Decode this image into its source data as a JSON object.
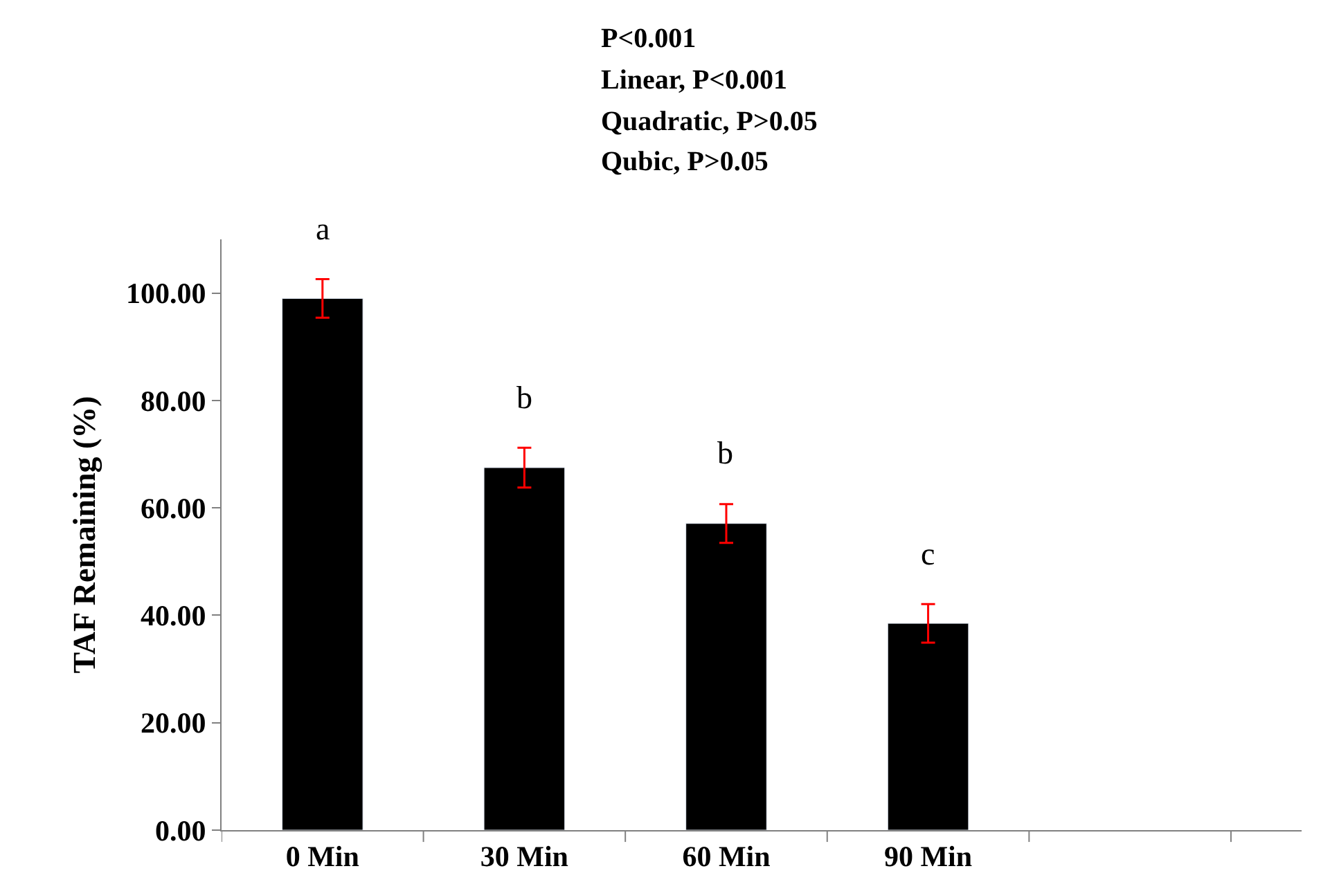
{
  "chart_data": {
    "type": "bar",
    "ylabel": "TAF Remaining (%)",
    "categories": [
      "0 Min",
      "30 Min",
      "60 Min",
      "90 Min",
      null
    ],
    "values": [
      99.0,
      67.5,
      57.1,
      38.5,
      null
    ],
    "errors": [
      3.6,
      3.7,
      3.6,
      3.6,
      null
    ],
    "color": "#000000",
    "ylim": [
      0,
      110
    ],
    "yticks": [
      {
        "value": 0,
        "label": "0.00"
      },
      {
        "value": 20,
        "label": "20.00"
      },
      {
        "value": 40,
        "label": "40.00"
      },
      {
        "value": 60,
        "label": "60.00"
      },
      {
        "value": 80,
        "label": "80.00"
      },
      {
        "value": 100,
        "label": "100.00"
      }
    ],
    "legend": false,
    "annotations": [
      "P<0.001",
      "Linear, P<0.001",
      "Quadratic, P>0.05",
      "Qubic, P>0.05",
      "a",
      "b",
      "b",
      "c"
    ]
  }
}
